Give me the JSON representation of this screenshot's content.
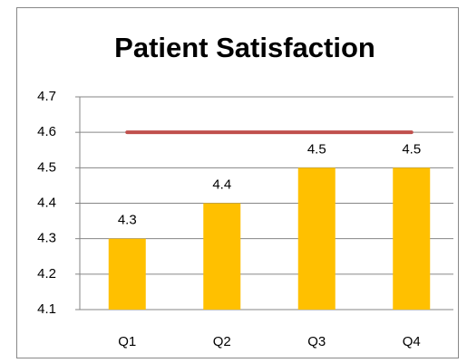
{
  "chart_data": {
    "type": "bar",
    "title": "Patient Satisfaction",
    "categories": [
      "Q1",
      "Q2",
      "Q3",
      "Q4"
    ],
    "series": [
      {
        "type": "bar",
        "color": "#ffc000",
        "values": [
          4.3,
          4.4,
          4.5,
          4.5
        ]
      },
      {
        "type": "line",
        "color": "#c0504d",
        "values": [
          4.6,
          4.6,
          4.6,
          4.6
        ]
      }
    ],
    "ylim": [
      4.1,
      4.7
    ],
    "yticks": [
      4.1,
      4.2,
      4.3,
      4.4,
      4.5,
      4.6,
      4.7
    ],
    "grid": true
  }
}
